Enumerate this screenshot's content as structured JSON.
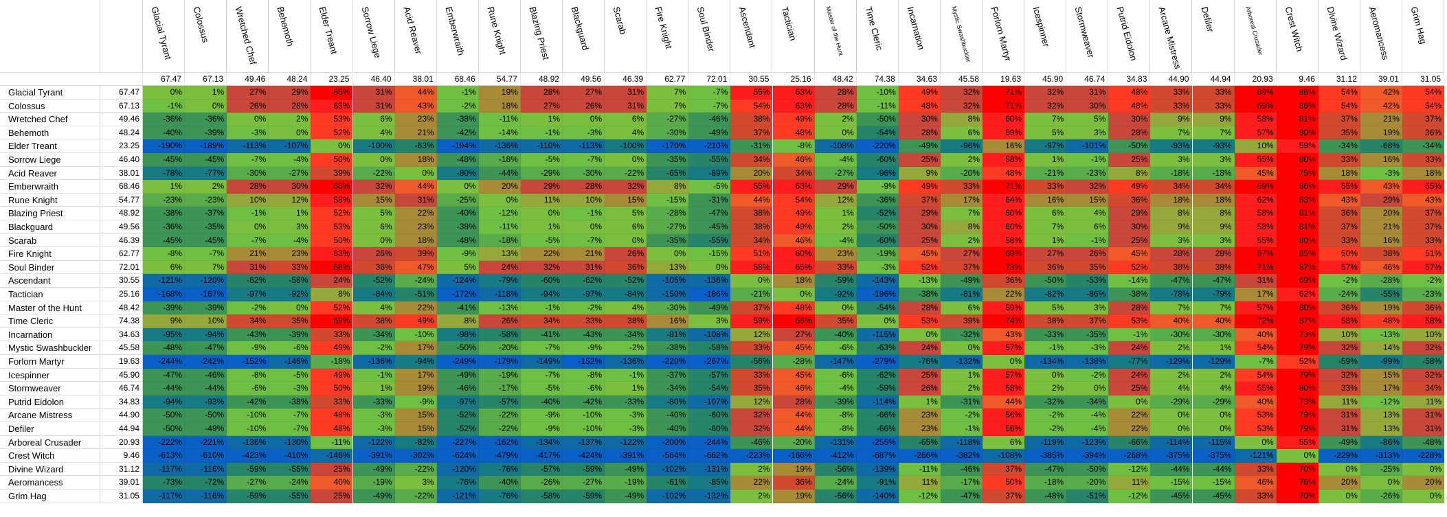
{
  "columns": [
    "Glacial Tyrant",
    "Colossus",
    "Wretched Chef",
    "Behemoth",
    "Elder Treant",
    "Sorrow Liege",
    "Acid Reaver",
    "Emberwraith",
    "Rune Knight",
    "Blazing Priest",
    "Blackguard",
    "Scarab",
    "Fire Knight",
    "Soul Binder",
    "Ascendant",
    "Tactician",
    "Master of the Hunt",
    "Time Cleric",
    "Incarnation",
    "Mystic Swashbuckler",
    "Forlorn Martyr",
    "Icespinner",
    "Stormweaver",
    "Putrid Eidolon",
    "Arcane Mistress",
    "Defiler",
    "Arboreal Crusader",
    "Crest Witch",
    "Divine Wizard",
    "Aeromancess",
    "Grim Hag"
  ],
  "column_averages": [
    "67.47",
    "67.13",
    "49.46",
    "48.24",
    "23.25",
    "46.40",
    "38.01",
    "68.46",
    "54.77",
    "48.92",
    "49.56",
    "46.39",
    "62.77",
    "72.01",
    "30.55",
    "25.16",
    "48.42",
    "74.38",
    "34.63",
    "45.58",
    "19.63",
    "45.90",
    "46.74",
    "34.83",
    "44.90",
    "44.94",
    "20.93",
    "9.46",
    "31.12",
    "39.01",
    "31.05"
  ],
  "rows": [
    {
      "name": "Glacial Tyrant",
      "avg": "67.47",
      "values": [
        "0%",
        "1%",
        "27%",
        "29%",
        "66%",
        "31%",
        "44%",
        "-1%",
        "19%",
        "28%",
        "27%",
        "31%",
        "7%",
        "-7%",
        "55%",
        "63%",
        "28%",
        "-10%",
        "49%",
        "32%",
        "71%",
        "32%",
        "31%",
        "48%",
        "33%",
        "33%",
        "69%",
        "86%",
        "54%",
        "42%",
        "54%"
      ]
    },
    {
      "name": "Colossus",
      "avg": "67.13",
      "values": [
        "-1%",
        "0%",
        "26%",
        "28%",
        "65%",
        "31%",
        "43%",
        "-2%",
        "18%",
        "27%",
        "26%",
        "31%",
        "7%",
        "-7%",
        "54%",
        "63%",
        "28%",
        "-11%",
        "48%",
        "32%",
        "71%",
        "32%",
        "30%",
        "48%",
        "33%",
        "33%",
        "69%",
        "86%",
        "54%",
        "42%",
        "54%"
      ]
    },
    {
      "name": "Wretched Chef",
      "avg": "49.46",
      "values": [
        "-36%",
        "-36%",
        "0%",
        "2%",
        "53%",
        "6%",
        "23%",
        "-38%",
        "-11%",
        "1%",
        "0%",
        "6%",
        "-27%",
        "-46%",
        "38%",
        "49%",
        "2%",
        "-50%",
        "30%",
        "8%",
        "60%",
        "7%",
        "5%",
        "30%",
        "9%",
        "9%",
        "58%",
        "81%",
        "37%",
        "21%",
        "37%"
      ]
    },
    {
      "name": "Behemoth",
      "avg": "48.24",
      "values": [
        "-40%",
        "-39%",
        "-3%",
        "0%",
        "52%",
        "4%",
        "21%",
        "-42%",
        "-14%",
        "-1%",
        "-3%",
        "4%",
        "-30%",
        "-49%",
        "37%",
        "48%",
        "0%",
        "-54%",
        "28%",
        "6%",
        "59%",
        "5%",
        "3%",
        "28%",
        "7%",
        "7%",
        "57%",
        "80%",
        "35%",
        "19%",
        "36%"
      ]
    },
    {
      "name": "Elder Treant",
      "avg": "23.25",
      "values": [
        "-190%",
        "-189%",
        "-113%",
        "-107%",
        "0%",
        "-100%",
        "-63%",
        "-194%",
        "-136%",
        "-110%",
        "-113%",
        "-100%",
        "-170%",
        "-210%",
        "-31%",
        "-8%",
        "-108%",
        "-220%",
        "-49%",
        "-96%",
        "16%",
        "-97%",
        "-101%",
        "-50%",
        "-93%",
        "-93%",
        "10%",
        "59%",
        "-34%",
        "-68%",
        "-34%"
      ]
    },
    {
      "name": "Sorrow Liege",
      "avg": "46.40",
      "values": [
        "-45%",
        "-45%",
        "-7%",
        "-4%",
        "50%",
        "0%",
        "18%",
        "-48%",
        "-18%",
        "-5%",
        "-7%",
        "0%",
        "-35%",
        "-55%",
        "34%",
        "46%",
        "-4%",
        "-60%",
        "25%",
        "2%",
        "58%",
        "1%",
        "-1%",
        "25%",
        "3%",
        "3%",
        "55%",
        "80%",
        "33%",
        "16%",
        "33%"
      ]
    },
    {
      "name": "Acid Reaver",
      "avg": "38.01",
      "values": [
        "-78%",
        "-77%",
        "-30%",
        "-27%",
        "39%",
        "-22%",
        "0%",
        "-80%",
        "-44%",
        "-29%",
        "-30%",
        "-22%",
        "-65%",
        "-89%",
        "20%",
        "34%",
        "-27%",
        "-96%",
        "9%",
        "-20%",
        "48%",
        "-21%",
        "-23%",
        "8%",
        "-18%",
        "-18%",
        "45%",
        "75%",
        "18%",
        "-3%",
        "18%"
      ]
    },
    {
      "name": "Emberwraith",
      "avg": "68.46",
      "values": [
        "1%",
        "2%",
        "28%",
        "30%",
        "66%",
        "32%",
        "44%",
        "0%",
        "20%",
        "29%",
        "28%",
        "32%",
        "8%",
        "-5%",
        "55%",
        "63%",
        "29%",
        "-9%",
        "49%",
        "33%",
        "71%",
        "33%",
        "32%",
        "49%",
        "34%",
        "34%",
        "69%",
        "86%",
        "55%",
        "43%",
        "55%"
      ]
    },
    {
      "name": "Rune Knight",
      "avg": "54.77",
      "values": [
        "-23%",
        "-23%",
        "10%",
        "12%",
        "58%",
        "15%",
        "31%",
        "-25%",
        "0%",
        "11%",
        "10%",
        "15%",
        "-15%",
        "-31%",
        "44%",
        "54%",
        "12%",
        "-36%",
        "37%",
        "17%",
        "64%",
        "16%",
        "15%",
        "36%",
        "18%",
        "18%",
        "62%",
        "83%",
        "43%",
        "29%",
        "43%"
      ]
    },
    {
      "name": "Blazing Priest",
      "avg": "48.92",
      "values": [
        "-38%",
        "-37%",
        "-1%",
        "1%",
        "52%",
        "5%",
        "22%",
        "-40%",
        "-12%",
        "0%",
        "-1%",
        "5%",
        "-28%",
        "-47%",
        "38%",
        "49%",
        "1%",
        "-52%",
        "29%",
        "7%",
        "60%",
        "6%",
        "4%",
        "29%",
        "8%",
        "8%",
        "58%",
        "81%",
        "36%",
        "20%",
        "37%"
      ]
    },
    {
      "name": "Blackguard",
      "avg": "49.56",
      "values": [
        "-36%",
        "-35%",
        "0%",
        "3%",
        "53%",
        "6%",
        "23%",
        "-38%",
        "-11%",
        "1%",
        "0%",
        "6%",
        "-27%",
        "-45%",
        "38%",
        "49%",
        "2%",
        "-50%",
        "30%",
        "8%",
        "60%",
        "7%",
        "6%",
        "30%",
        "9%",
        "9%",
        "58%",
        "81%",
        "37%",
        "21%",
        "37%"
      ]
    },
    {
      "name": "Scarab",
      "avg": "46.39",
      "values": [
        "-45%",
        "-45%",
        "-7%",
        "-4%",
        "50%",
        "0%",
        "18%",
        "-48%",
        "-18%",
        "-5%",
        "-7%",
        "0%",
        "-35%",
        "-55%",
        "34%",
        "46%",
        "-4%",
        "-60%",
        "25%",
        "2%",
        "58%",
        "1%",
        "-1%",
        "25%",
        "3%",
        "3%",
        "55%",
        "80%",
        "33%",
        "16%",
        "33%"
      ]
    },
    {
      "name": "Fire Knight",
      "avg": "62.77",
      "values": [
        "-8%",
        "-7%",
        "21%",
        "23%",
        "63%",
        "26%",
        "39%",
        "-9%",
        "13%",
        "22%",
        "21%",
        "26%",
        "0%",
        "-15%",
        "51%",
        "60%",
        "23%",
        "-19%",
        "45%",
        "27%",
        "69%",
        "27%",
        "26%",
        "45%",
        "28%",
        "28%",
        "67%",
        "85%",
        "50%",
        "38%",
        "51%"
      ]
    },
    {
      "name": "Soul Binder",
      "avg": "72.01",
      "values": [
        "6%",
        "7%",
        "31%",
        "33%",
        "68%",
        "36%",
        "47%",
        "5%",
        "24%",
        "32%",
        "31%",
        "36%",
        "13%",
        "0%",
        "58%",
        "65%",
        "33%",
        "-3%",
        "52%",
        "37%",
        "73%",
        "36%",
        "35%",
        "52%",
        "38%",
        "38%",
        "71%",
        "87%",
        "57%",
        "46%",
        "57%"
      ]
    },
    {
      "name": "Ascendant",
      "avg": "30.55",
      "values": [
        "-121%",
        "-120%",
        "-62%",
        "-58%",
        "24%",
        "-52%",
        "-24%",
        "-124%",
        "-79%",
        "-60%",
        "-62%",
        "-52%",
        "-105%",
        "-136%",
        "0%",
        "18%",
        "-59%",
        "-143%",
        "-13%",
        "-49%",
        "36%",
        "-50%",
        "-53%",
        "-14%",
        "-47%",
        "-47%",
        "31%",
        "69%",
        "-2%",
        "-28%",
        "-2%"
      ]
    },
    {
      "name": "Tactician",
      "avg": "25.16",
      "values": [
        "-168%",
        "-167%",
        "-97%",
        "-92%",
        "8%",
        "-84%",
        "-51%",
        "-172%",
        "-118%",
        "-94%",
        "-97%",
        "-84%",
        "-150%",
        "-186%",
        "-21%",
        "0%",
        "-92%",
        "-196%",
        "-38%",
        "-81%",
        "22%",
        "-82%",
        "-86%",
        "-38%",
        "-78%",
        "-79%",
        "17%",
        "62%",
        "-24%",
        "-55%",
        "-23%"
      ]
    },
    {
      "name": "Master of the Hunt",
      "avg": "48.42",
      "values": [
        "-39%",
        "-39%",
        "-2%",
        "0%",
        "52%",
        "4%",
        "22%",
        "-41%",
        "-13%",
        "-1%",
        "-2%",
        "4%",
        "-30%",
        "-49%",
        "37%",
        "48%",
        "0%",
        "-54%",
        "28%",
        "6%",
        "59%",
        "5%",
        "3%",
        "28%",
        "7%",
        "7%",
        "57%",
        "80%",
        "36%",
        "19%",
        "36%"
      ]
    },
    {
      "name": "Time Cleric",
      "avg": "74.38",
      "values": [
        "9%",
        "10%",
        "34%",
        "35%",
        "69%",
        "38%",
        "49%",
        "8%",
        "26%",
        "34%",
        "33%",
        "38%",
        "16%",
        "3%",
        "59%",
        "66%",
        "35%",
        "0%",
        "53%",
        "39%",
        "74%",
        "38%",
        "37%",
        "53%",
        "40%",
        "40%",
        "72%",
        "87%",
        "58%",
        "48%",
        "58%"
      ]
    },
    {
      "name": "Incarnation",
      "avg": "34.63",
      "values": [
        "-95%",
        "-94%",
        "-43%",
        "-39%",
        "33%",
        "-34%",
        "-10%",
        "-98%",
        "-58%",
        "-41%",
        "-43%",
        "-34%",
        "-81%",
        "-108%",
        "12%",
        "27%",
        "-40%",
        "-115%",
        "0%",
        "-32%",
        "43%",
        "-33%",
        "-35%",
        "-1%",
        "-30%",
        "-30%",
        "40%",
        "73%",
        "10%",
        "-13%",
        "10%"
      ]
    },
    {
      "name": "Mystic Swashbuckler",
      "avg": "45.58",
      "values": [
        "-48%",
        "-47%",
        "-9%",
        "-6%",
        "49%",
        "-2%",
        "17%",
        "-50%",
        "-20%",
        "-7%",
        "-9%",
        "-2%",
        "-38%",
        "-58%",
        "33%",
        "45%",
        "-6%",
        "-63%",
        "24%",
        "0%",
        "57%",
        "-1%",
        "-3%",
        "24%",
        "2%",
        "1%",
        "54%",
        "79%",
        "32%",
        "14%",
        "32%"
      ]
    },
    {
      "name": "Forlorn Martyr",
      "avg": "19.63",
      "values": [
        "-244%",
        "-242%",
        "-152%",
        "-146%",
        "-18%",
        "-136%",
        "-94%",
        "-249%",
        "-179%",
        "-149%",
        "-152%",
        "-136%",
        "-220%",
        "-267%",
        "-56%",
        "-28%",
        "-147%",
        "-279%",
        "-76%",
        "-132%",
        "0%",
        "-134%",
        "-138%",
        "-77%",
        "-129%",
        "-129%",
        "-7%",
        "52%",
        "-59%",
        "-99%",
        "-58%"
      ]
    },
    {
      "name": "Icespinner",
      "avg": "45.90",
      "values": [
        "-47%",
        "-46%",
        "-8%",
        "-5%",
        "49%",
        "-1%",
        "17%",
        "-49%",
        "-19%",
        "-7%",
        "-8%",
        "-1%",
        "-37%",
        "-57%",
        "33%",
        "45%",
        "-6%",
        "-62%",
        "25%",
        "1%",
        "57%",
        "0%",
        "-2%",
        "24%",
        "2%",
        "2%",
        "54%",
        "79%",
        "32%",
        "15%",
        "32%"
      ]
    },
    {
      "name": "Stormweaver",
      "avg": "46.74",
      "values": [
        "-44%",
        "-44%",
        "-6%",
        "-3%",
        "50%",
        "1%",
        "19%",
        "-46%",
        "-17%",
        "-5%",
        "-6%",
        "1%",
        "-34%",
        "-54%",
        "35%",
        "46%",
        "-4%",
        "-59%",
        "26%",
        "2%",
        "58%",
        "2%",
        "0%",
        "25%",
        "4%",
        "4%",
        "55%",
        "80%",
        "33%",
        "17%",
        "34%"
      ]
    },
    {
      "name": "Putrid Eidolon",
      "avg": "34.83",
      "values": [
        "-94%",
        "-93%",
        "-42%",
        "-38%",
        "33%",
        "-33%",
        "-9%",
        "-97%",
        "-57%",
        "-40%",
        "-42%",
        "-33%",
        "-80%",
        "-107%",
        "12%",
        "28%",
        "-39%",
        "-114%",
        "1%",
        "-31%",
        "44%",
        "-32%",
        "-34%",
        "0%",
        "-29%",
        "-29%",
        "40%",
        "73%",
        "11%",
        "-12%",
        "11%"
      ]
    },
    {
      "name": "Arcane Mistress",
      "avg": "44.90",
      "values": [
        "-50%",
        "-50%",
        "-10%",
        "-7%",
        "48%",
        "-3%",
        "15%",
        "-52%",
        "-22%",
        "-9%",
        "-10%",
        "-3%",
        "-40%",
        "-60%",
        "32%",
        "44%",
        "-8%",
        "-66%",
        "23%",
        "-2%",
        "56%",
        "-2%",
        "-4%",
        "22%",
        "0%",
        "0%",
        "53%",
        "79%",
        "31%",
        "13%",
        "31%"
      ]
    },
    {
      "name": "Defiler",
      "avg": "44.94",
      "values": [
        "-50%",
        "-49%",
        "-10%",
        "-7%",
        "48%",
        "-3%",
        "15%",
        "-52%",
        "-22%",
        "-9%",
        "-10%",
        "-3%",
        "-40%",
        "-60%",
        "32%",
        "44%",
        "-8%",
        "-66%",
        "23%",
        "-1%",
        "56%",
        "-2%",
        "-4%",
        "22%",
        "0%",
        "0%",
        "53%",
        "79%",
        "31%",
        "13%",
        "31%"
      ]
    },
    {
      "name": "Arboreal Crusader",
      "avg": "20.93",
      "values": [
        "-222%",
        "-221%",
        "-136%",
        "-130%",
        "-11%",
        "-122%",
        "-82%",
        "-227%",
        "-162%",
        "-134%",
        "-137%",
        "-122%",
        "-200%",
        "-244%",
        "-46%",
        "-20%",
        "-131%",
        "-255%",
        "-65%",
        "-118%",
        "6%",
        "-119%",
        "-123%",
        "-66%",
        "-114%",
        "-115%",
        "0%",
        "55%",
        "-49%",
        "-86%",
        "-48%"
      ]
    },
    {
      "name": "Crest Witch",
      "avg": "9.46",
      "values": [
        "-613%",
        "-610%",
        "-423%",
        "-410%",
        "-146%",
        "-391%",
        "-302%",
        "-624%",
        "-479%",
        "-417%",
        "-424%",
        "-391%",
        "-564%",
        "-662%",
        "-223%",
        "-166%",
        "-412%",
        "-687%",
        "-266%",
        "-382%",
        "-108%",
        "-385%",
        "-394%",
        "-268%",
        "-375%",
        "-375%",
        "-121%",
        "0%",
        "-229%",
        "-313%",
        "-228%"
      ]
    },
    {
      "name": "Divine Wizard",
      "avg": "31.12",
      "values": [
        "-117%",
        "-116%",
        "-59%",
        "-55%",
        "25%",
        "-49%",
        "-22%",
        "-120%",
        "-76%",
        "-57%",
        "-59%",
        "-49%",
        "-102%",
        "-131%",
        "2%",
        "19%",
        "-56%",
        "-139%",
        "-11%",
        "-46%",
        "37%",
        "-47%",
        "-50%",
        "-12%",
        "-44%",
        "-44%",
        "33%",
        "70%",
        "0%",
        "-25%",
        "0%"
      ]
    },
    {
      "name": "Aeromancess",
      "avg": "39.01",
      "values": [
        "-73%",
        "-72%",
        "-27%",
        "-24%",
        "40%",
        "-19%",
        "3%",
        "-76%",
        "-40%",
        "-26%",
        "-27%",
        "-19%",
        "-61%",
        "-85%",
        "22%",
        "36%",
        "-24%",
        "-91%",
        "11%",
        "-17%",
        "50%",
        "-18%",
        "-20%",
        "11%",
        "-15%",
        "-15%",
        "46%",
        "76%",
        "20%",
        "0%",
        "20%"
      ]
    },
    {
      "name": "Grim Hag",
      "avg": "31.05",
      "values": [
        "-117%",
        "-116%",
        "-59%",
        "-55%",
        "25%",
        "-49%",
        "-22%",
        "-121%",
        "-76%",
        "-58%",
        "-59%",
        "-49%",
        "-102%",
        "-132%",
        "2%",
        "19%",
        "-56%",
        "-140%",
        "-12%",
        "-47%",
        "37%",
        "-48%",
        "-51%",
        "-12%",
        "-45%",
        "-45%",
        "33%",
        "70%",
        "0%",
        "-26%",
        "0%"
      ]
    }
  ],
  "colors": {
    "red": "#ff0000",
    "orange": "#ff5a1e",
    "dark_red": "#c83c28",
    "olive": "#96a032",
    "green": "#78be3c",
    "teal": "#2f8a6e",
    "blue": "#0a64c8",
    "gridline": "#d4d4d4"
  }
}
